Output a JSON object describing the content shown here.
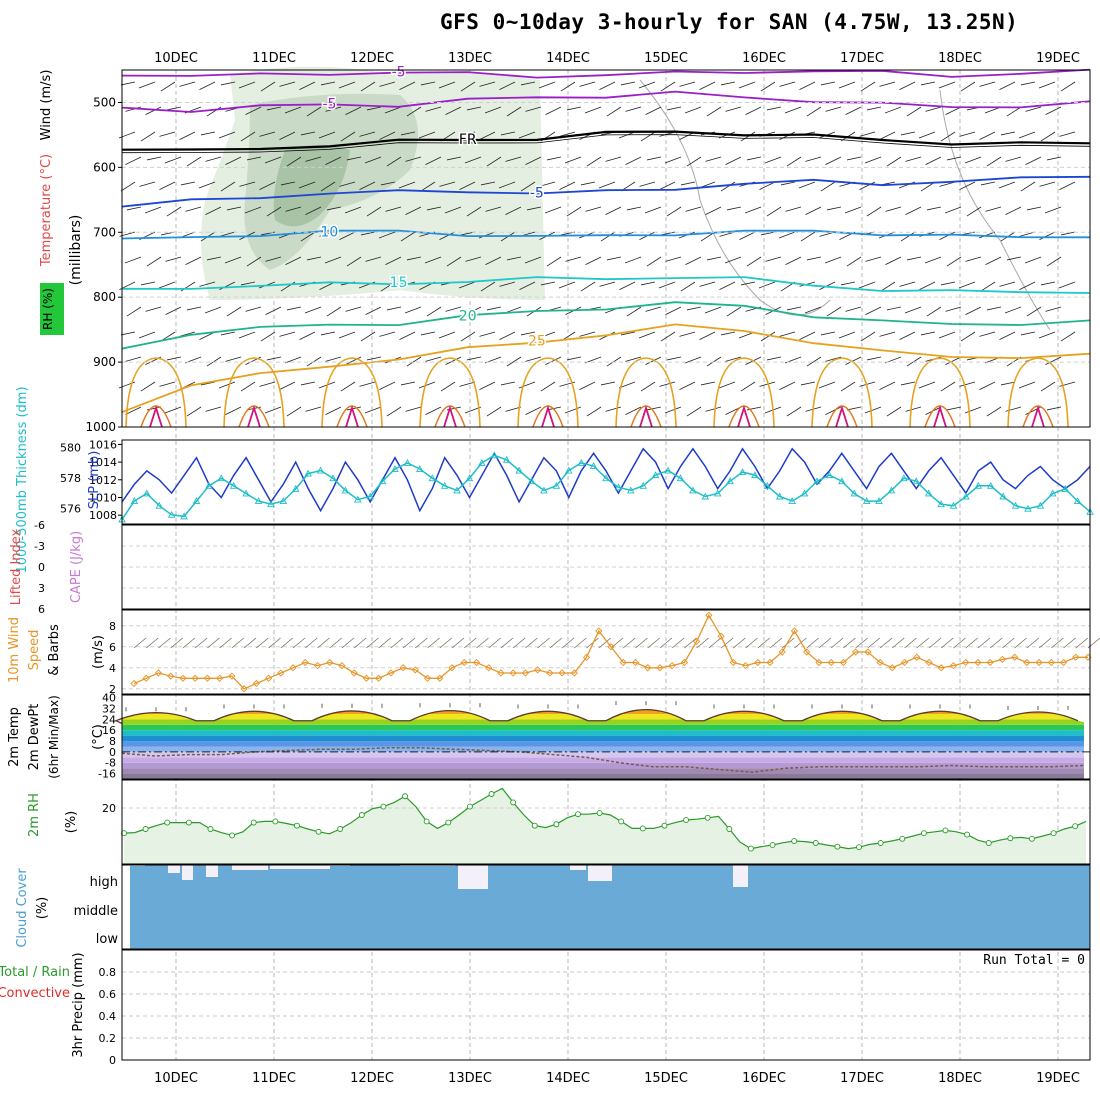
{
  "header": {
    "title": "GFS 0~10day 3-hourly for SAN (4.75W, 13.25N)"
  },
  "chart_data": [
    {
      "panel": "upper_air",
      "type": "contour",
      "ylabel_mb": "(millibars)",
      "ylabel_temp": "Temperature (°C)",
      "ylabel_wind": "Wind (m/s)",
      "ylabel_rh": "RH (%)",
      "yticks": [
        "500",
        "600",
        "700",
        "800",
        "900",
        "1000"
      ],
      "ylim": [
        450,
        1000
      ],
      "freezing_label": "FR",
      "contours": [
        {
          "label": "-5",
          "color": "#9a1fc8",
          "p": [
            508,
            512,
            507,
            503,
            504,
            497,
            492,
            490,
            486,
            492,
            497,
            503,
            507,
            505,
            501
          ]
        },
        {
          "label": "-5",
          "color": "#9a1fc8",
          "p": [
            456,
            459,
            458,
            455,
            454,
            456,
            459,
            458,
            455,
            452,
            452,
            454,
            458,
            456,
            452
          ]
        },
        {
          "label": "FR",
          "color": "#000000",
          "p": [
            570,
            575,
            572,
            565,
            560,
            558,
            555,
            548,
            545,
            548,
            552,
            558,
            562,
            564,
            563
          ]
        },
        {
          "label": "-5",
          "color": "#1e46d2",
          "p": [
            660,
            652,
            645,
            640,
            638,
            636,
            640,
            638,
            632,
            625,
            622,
            625,
            622,
            618,
            612
          ]
        },
        {
          "label": "10",
          "color": "#1e90e0",
          "p": [
            712,
            708,
            703,
            700,
            698,
            703,
            708,
            705,
            702,
            700,
            698,
            702,
            706,
            708,
            705
          ]
        },
        {
          "label": "15",
          "color": "#1ec8c8",
          "p": [
            790,
            785,
            782,
            780,
            778,
            776,
            772,
            770,
            770,
            772,
            780,
            790,
            792,
            790,
            793
          ]
        },
        {
          "label": "20",
          "color": "#1eb48c",
          "p": [
            880,
            855,
            848,
            843,
            840,
            830,
            822,
            816,
            810,
            814,
            828,
            838,
            842,
            840,
            838
          ]
        },
        {
          "label": "25",
          "color": "#e6a21e",
          "p": [
            975,
            935,
            920,
            905,
            895,
            880,
            868,
            858,
            845,
            850,
            870,
            885,
            890,
            893,
            890
          ]
        }
      ]
    },
    {
      "panel": "slp_thickness",
      "type": "line",
      "ylabel_left": "1000-500mb Thickness (dm)",
      "ylabel_right": "SLP (mb)",
      "yticks_left": [
        "580",
        "578",
        "576"
      ],
      "yticks_right": [
        "1016",
        "1014",
        "1012",
        "1010",
        "1008"
      ],
      "series": [
        {
          "name": "SLP (mb)",
          "color": "#1e3cc8",
          "ylim": [
            1007,
            1016.5
          ],
          "values": [
            1009.5,
            1011.5,
            1013,
            1012,
            1010.5,
            1012.5,
            1014.5,
            1011.5,
            1010,
            1012.5,
            1014.5,
            1012,
            1009.5,
            1011.5,
            1014,
            1011,
            1008.5,
            1011,
            1014,
            1012,
            1009.5,
            1012,
            1014.5,
            1012,
            1008.5,
            1011,
            1014.5,
            1012.5,
            1010,
            1012.5,
            1015,
            1012.5,
            1009.5,
            1012,
            1014.5,
            1013,
            1010,
            1013,
            1015,
            1013,
            1010.5,
            1013,
            1015.5,
            1014,
            1011,
            1013.5,
            1015.5,
            1013.5,
            1011,
            1013,
            1015.5,
            1013.5,
            1011,
            1013,
            1015.5,
            1014,
            1011.5,
            1013,
            1015,
            1013,
            1011,
            1013.5,
            1015,
            1013,
            1011,
            1013,
            1014.5,
            1012.5,
            1010.5,
            1013,
            1014,
            1012,
            1011,
            1012.5,
            1013.5,
            1012,
            1011,
            1012,
            1013.5
          ]
        },
        {
          "name": "1000-500mb Thickness (dm)",
          "color": "#1ebec8",
          "ylim": [
            575,
            580.5
          ],
          "values": [
            575.3,
            576.5,
            577,
            576.2,
            575.6,
            575.5,
            576.5,
            577.5,
            578,
            577.5,
            577,
            576.5,
            576.3,
            576.5,
            577.3,
            578.3,
            578.5,
            578,
            577.2,
            576.6,
            576.8,
            577.8,
            578.6,
            579,
            578.6,
            578,
            577.5,
            577.2,
            578,
            579,
            579.5,
            579.2,
            578.5,
            577.8,
            577.2,
            577.5,
            578.5,
            579,
            578.8,
            578,
            577.4,
            577.2,
            577.5,
            578.2,
            578.5,
            578,
            577.2,
            576.8,
            577,
            577.8,
            578.4,
            578.2,
            577.5,
            576.8,
            576.5,
            577,
            577.8,
            578.2,
            577.8,
            577,
            576.5,
            576.5,
            577.2,
            578,
            577.8,
            577,
            576.3,
            576.2,
            576.8,
            577.5,
            577.5,
            576.8,
            576.2,
            576,
            576.2,
            577,
            577.3,
            576.5,
            575.8
          ]
        }
      ]
    },
    {
      "panel": "cape_li",
      "type": "line",
      "ylabel_left": "Lifted Index",
      "ylabel_right": "CAPE (J/kg)",
      "yticks": [
        "-6",
        "-3",
        "0",
        "3",
        "6"
      ],
      "ylim": [
        -6,
        6
      ],
      "values": [
        0,
        0,
        0,
        0,
        0,
        0,
        0,
        0,
        0,
        0,
        0,
        0
      ]
    },
    {
      "panel": "wind10m",
      "type": "line",
      "ylabel": "10m Wind Speed & Barbs",
      "units": "(m/s)",
      "yticks": [
        "8",
        "6",
        "4",
        "2"
      ],
      "ylim": [
        1.5,
        9.5
      ],
      "values": [
        2.5,
        3,
        3.5,
        3.2,
        3,
        3,
        3,
        3,
        3.2,
        2,
        2.5,
        3,
        3.5,
        4,
        4.5,
        4.2,
        4.5,
        4.2,
        3.5,
        3,
        3,
        3.5,
        4,
        3.8,
        3,
        3,
        4,
        4.5,
        4.5,
        4,
        3.5,
        3.5,
        3.5,
        3.8,
        3.5,
        3.5,
        3.5,
        5,
        7.5,
        6,
        4.5,
        4.5,
        4,
        4,
        4.2,
        4.5,
        6.5,
        9,
        7,
        4.5,
        4.2,
        4.5,
        4.5,
        5.5,
        7.5,
        5.5,
        4.5,
        4.5,
        4.5,
        5.5,
        5.5,
        4.5,
        4,
        4.5,
        5,
        4.5,
        4,
        4.2,
        4.5,
        4.5,
        4.5,
        4.8,
        5,
        4.5,
        4.5,
        4.5,
        4.5,
        5,
        5
      ]
    },
    {
      "panel": "temp2m",
      "type": "area",
      "ylabel": "2m Temp 2m DewPt (6hr Min/Max)",
      "units": "(°C)",
      "yticks": [
        "40",
        "32",
        "24",
        "16",
        "8",
        "0",
        "-8",
        "-16"
      ],
      "ylim": [
        -20,
        42
      ],
      "temp_max": [
        32,
        34,
        34.5,
        35,
        34,
        36.5,
        34,
        34,
        34,
        33
      ],
      "temp_min": 21,
      "dewpoint": [
        -1,
        -3,
        -2,
        -2,
        0,
        1,
        2,
        2,
        3,
        3,
        2,
        1,
        0,
        -2,
        -4,
        -8,
        -11,
        -11,
        -13,
        -15,
        -12,
        -11,
        -11,
        -11,
        -11,
        -10,
        -11,
        -11,
        -11,
        -10
      ]
    },
    {
      "panel": "rh2m",
      "type": "area",
      "ylabel": "2m RH",
      "units": "(%)",
      "yticks": [
        "20"
      ],
      "ylim": [
        0,
        30
      ],
      "values": [
        11,
        11.2,
        12.5,
        13.7,
        14.8,
        14.8,
        14.8,
        14.8,
        12.5,
        11.2,
        10.2,
        11.5,
        14.8,
        15.2,
        15.2,
        14.5,
        13.7,
        12.5,
        11.5,
        10.8,
        12.5,
        14.7,
        17.5,
        19.8,
        20.5,
        22,
        24.2,
        20.5,
        15.2,
        12.7,
        14.8,
        17.5,
        20.5,
        22.7,
        25,
        27,
        22,
        17.5,
        13.7,
        13,
        14.2,
        16.5,
        17.8,
        17.8,
        18.2,
        17.5,
        15.2,
        12.7,
        12.7,
        12.7,
        13.7,
        14.8,
        15.7,
        16,
        16.5,
        17,
        12.5,
        7.8,
        5.5,
        6.2,
        6.8,
        7.6,
        8.2,
        8,
        7.5,
        6.8,
        6.2,
        5.5,
        6,
        7,
        7.5,
        8.2,
        9,
        10,
        11,
        11.5,
        12,
        11.5,
        10.5,
        8.5,
        7.5,
        8.5,
        9.2,
        9.5,
        9,
        10,
        11,
        12.5,
        13.5,
        15.2
      ]
    },
    {
      "panel": "cloud",
      "type": "bar",
      "ylabel": "Cloud Cover",
      "units": "(%)",
      "levels": [
        "high",
        "middle",
        "low"
      ]
    },
    {
      "panel": "precip",
      "type": "bar",
      "ylabel_left": "3hr Precip (mm)",
      "legend": [
        "Total / Rain",
        "Convective"
      ],
      "yticks": [
        "0.8",
        "0.6",
        "0.4",
        "0.2",
        "0"
      ],
      "ylim": [
        0,
        1
      ],
      "run_total": "Run Total = 0",
      "values": [
        0,
        0,
        0,
        0,
        0,
        0,
        0,
        0,
        0,
        0
      ]
    }
  ],
  "axes": {
    "date_labels": [
      "10DEC",
      "11DEC",
      "12DEC",
      "13DEC",
      "14DEC",
      "15DEC",
      "16DEC",
      "17DEC",
      "18DEC",
      "19DEC"
    ]
  }
}
